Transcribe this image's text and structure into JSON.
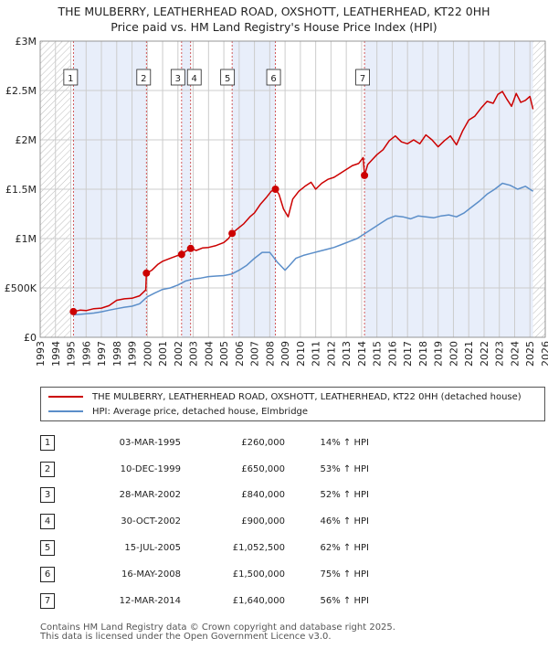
{
  "title_line1": "THE MULBERRY, LEATHERHEAD ROAD, OXSHOTT, LEATHERHEAD, KT22 0HH",
  "title_line2": "Price paid vs. HM Land Registry's House Price Index (HPI)",
  "colors": {
    "property": "#cc0000",
    "hpi": "#5b8ec9",
    "shade": "#e8eefa",
    "marker_line": "#cc3333",
    "grid": "#cccccc"
  },
  "chart_data": {
    "type": "line",
    "xlim": [
      1993,
      2026
    ],
    "ylim": [
      0,
      3000000
    ],
    "x_ticks": [
      1993,
      1994,
      1995,
      1996,
      1997,
      1998,
      1999,
      2000,
      2001,
      2002,
      2003,
      2004,
      2005,
      2006,
      2007,
      2008,
      2009,
      2010,
      2011,
      2012,
      2013,
      2014,
      2015,
      2016,
      2017,
      2018,
      2019,
      2020,
      2021,
      2022,
      2023,
      2024,
      2025,
      2026
    ],
    "y_ticks": [
      {
        "value": 0,
        "label": "£0"
      },
      {
        "value": 500000,
        "label": "£500K"
      },
      {
        "value": 1000000,
        "label": "£1M"
      },
      {
        "value": 1500000,
        "label": "£1.5M"
      },
      {
        "value": 2000000,
        "label": "£2M"
      },
      {
        "value": 2500000,
        "label": "£2.5M"
      },
      {
        "value": 3000000,
        "label": "£3M"
      }
    ],
    "hatch_before": 1995.0,
    "hatch_after": 2025.2,
    "shaded_spans": [
      [
        1995.17,
        1999.94
      ],
      [
        2002.24,
        2002.83
      ],
      [
        2005.54,
        2008.37
      ],
      [
        2014.19,
        2025.2
      ]
    ],
    "series": [
      {
        "name": "THE MULBERRY, LEATHERHEAD ROAD, OXSHOTT, LEATHERHEAD, KT22 0HH (detached house)",
        "color": "#cc0000",
        "x": [
          1995.17,
          1995.6,
          1996,
          1996.5,
          1997,
          1997.5,
          1998,
          1998.5,
          1999,
          1999.5,
          1999.9,
          1999.94,
          2000.3,
          2000.7,
          2001,
          2001.5,
          2002,
          2002.24,
          2002.5,
          2002.83,
          2003.2,
          2003.6,
          2004,
          2004.5,
          2005,
          2005.3,
          2005.54,
          2005.9,
          2006.3,
          2006.7,
          2007,
          2007.4,
          2007.8,
          2008.1,
          2008.37,
          2008.6,
          2008.9,
          2009.2,
          2009.5,
          2009.9,
          2010.3,
          2010.7,
          2011,
          2011.4,
          2011.8,
          2012.2,
          2012.6,
          2013,
          2013.4,
          2013.8,
          2014.1,
          2014.19,
          2014.4,
          2014.7,
          2015,
          2015.4,
          2015.8,
          2016.2,
          2016.6,
          2017,
          2017.4,
          2017.8,
          2018.2,
          2018.6,
          2019,
          2019.4,
          2019.8,
          2020.2,
          2020.6,
          2021,
          2021.4,
          2021.8,
          2022.2,
          2022.6,
          2022.9,
          2023.2,
          2023.5,
          2023.8,
          2024.1,
          2024.4,
          2024.7,
          2025,
          2025.2
        ],
        "values": [
          260000,
          275000,
          270000,
          290000,
          295000,
          320000,
          375000,
          390000,
          395000,
          420000,
          480000,
          650000,
          680000,
          740000,
          770000,
          800000,
          830000,
          840000,
          870000,
          900000,
          880000,
          905000,
          910000,
          930000,
          960000,
          1000000,
          1052500,
          1100000,
          1150000,
          1220000,
          1260000,
          1350000,
          1420000,
          1480000,
          1500000,
          1450000,
          1300000,
          1220000,
          1400000,
          1480000,
          1530000,
          1570000,
          1500000,
          1560000,
          1600000,
          1620000,
          1660000,
          1700000,
          1740000,
          1760000,
          1820000,
          1640000,
          1750000,
          1800000,
          1850000,
          1900000,
          1990000,
          2040000,
          1980000,
          1960000,
          2000000,
          1960000,
          2050000,
          2000000,
          1930000,
          1990000,
          2040000,
          1950000,
          2090000,
          2200000,
          2240000,
          2320000,
          2390000,
          2370000,
          2460000,
          2490000,
          2410000,
          2340000,
          2470000,
          2380000,
          2400000,
          2440000,
          2310000
        ]
      },
      {
        "name": "HPI: Average price, detached house, Elmbridge",
        "color": "#5b8ec9",
        "x": [
          1995.17,
          1995.6,
          1996,
          1996.5,
          1997,
          1997.5,
          1998,
          1998.5,
          1999,
          1999.5,
          2000,
          2000.5,
          2001,
          2001.5,
          2002,
          2002.5,
          2003,
          2003.5,
          2004,
          2004.5,
          2005,
          2005.5,
          2006,
          2006.5,
          2007,
          2007.5,
          2008,
          2008.5,
          2009,
          2009.3,
          2009.7,
          2010.2,
          2010.7,
          2011.2,
          2011.7,
          2012.2,
          2012.7,
          2013.2,
          2013.7,
          2014.2,
          2014.7,
          2015.2,
          2015.7,
          2016.2,
          2016.7,
          2017.2,
          2017.7,
          2018.2,
          2018.7,
          2019.2,
          2019.7,
          2020.2,
          2020.7,
          2021.2,
          2021.7,
          2022.2,
          2022.7,
          2023.2,
          2023.7,
          2024.2,
          2024.7,
          2025.2
        ],
        "values": [
          228000,
          232000,
          238000,
          245000,
          258000,
          275000,
          290000,
          305000,
          315000,
          340000,
          410000,
          450000,
          485000,
          500000,
          530000,
          570000,
          590000,
          600000,
          615000,
          620000,
          625000,
          640000,
          680000,
          730000,
          800000,
          860000,
          860000,
          760000,
          680000,
          730000,
          800000,
          830000,
          850000,
          870000,
          890000,
          910000,
          940000,
          970000,
          1000000,
          1050000,
          1100000,
          1150000,
          1200000,
          1230000,
          1220000,
          1200000,
          1230000,
          1220000,
          1210000,
          1230000,
          1240000,
          1220000,
          1260000,
          1320000,
          1380000,
          1450000,
          1500000,
          1560000,
          1540000,
          1500000,
          1530000,
          1480000
        ]
      }
    ],
    "sale_markers": [
      {
        "label": "1",
        "x": 1995.17,
        "value": 260000
      },
      {
        "label": "2",
        "x": 1999.94,
        "value": 650000
      },
      {
        "label": "3",
        "x": 2002.24,
        "value": 840000
      },
      {
        "label": "4",
        "x": 2002.83,
        "value": 900000
      },
      {
        "label": "5",
        "x": 2005.54,
        "value": 1052500
      },
      {
        "label": "6",
        "x": 2008.37,
        "value": 1500000
      },
      {
        "label": "7",
        "x": 2014.19,
        "value": 1640000
      }
    ]
  },
  "legend": [
    {
      "label": "THE MULBERRY, LEATHERHEAD ROAD, OXSHOTT, LEATHERHEAD, KT22 0HH (detached house)",
      "color": "#cc0000"
    },
    {
      "label": "HPI: Average price, detached house, Elmbridge",
      "color": "#5b8ec9"
    }
  ],
  "sales": [
    {
      "num": "1",
      "date": "03-MAR-1995",
      "price": "£260,000",
      "hpi": "14% ↑ HPI"
    },
    {
      "num": "2",
      "date": "10-DEC-1999",
      "price": "£650,000",
      "hpi": "53% ↑ HPI"
    },
    {
      "num": "3",
      "date": "28-MAR-2002",
      "price": "£840,000",
      "hpi": "52% ↑ HPI"
    },
    {
      "num": "4",
      "date": "30-OCT-2002",
      "price": "£900,000",
      "hpi": "46% ↑ HPI"
    },
    {
      "num": "5",
      "date": "15-JUL-2005",
      "price": "£1,052,500",
      "hpi": "62% ↑ HPI"
    },
    {
      "num": "6",
      "date": "16-MAY-2008",
      "price": "£1,500,000",
      "hpi": "75% ↑ HPI"
    },
    {
      "num": "7",
      "date": "12-MAR-2014",
      "price": "£1,640,000",
      "hpi": "56% ↑ HPI"
    }
  ],
  "footer_line1": "Contains HM Land Registry data © Crown copyright and database right 2025.",
  "footer_line2": "This data is licensed under the Open Government Licence v3.0."
}
